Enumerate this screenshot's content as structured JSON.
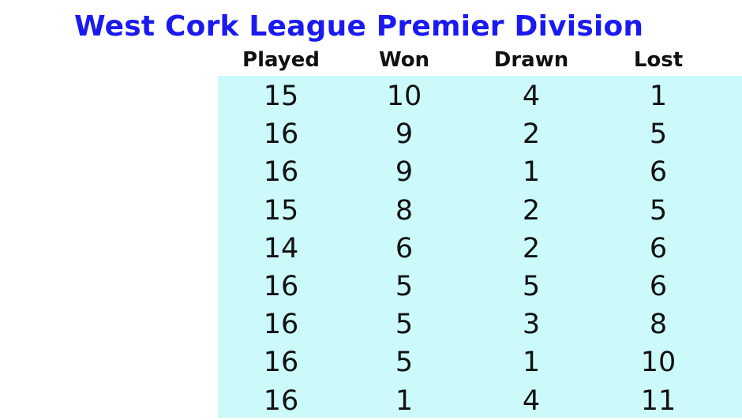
{
  "title": "West Cork League Premier Division",
  "columns": [
    "Played",
    "Won",
    "Drawn",
    "Lost"
  ],
  "rows": [
    [
      "15",
      "10",
      "4",
      "1"
    ],
    [
      "16",
      "9",
      "2",
      "5"
    ],
    [
      "16",
      "9",
      "1",
      "6"
    ],
    [
      "15",
      "8",
      "2",
      "5"
    ],
    [
      "14",
      "6",
      "2",
      "6"
    ],
    [
      "16",
      "5",
      "5",
      "6"
    ],
    [
      "16",
      "5",
      "3",
      "8"
    ],
    [
      "16",
      "5",
      "1",
      "10"
    ],
    [
      "16",
      "1",
      "4",
      "11"
    ]
  ],
  "colors": {
    "title": "#1a1af0",
    "table_background": "#ccfafa",
    "text": "#111111"
  }
}
